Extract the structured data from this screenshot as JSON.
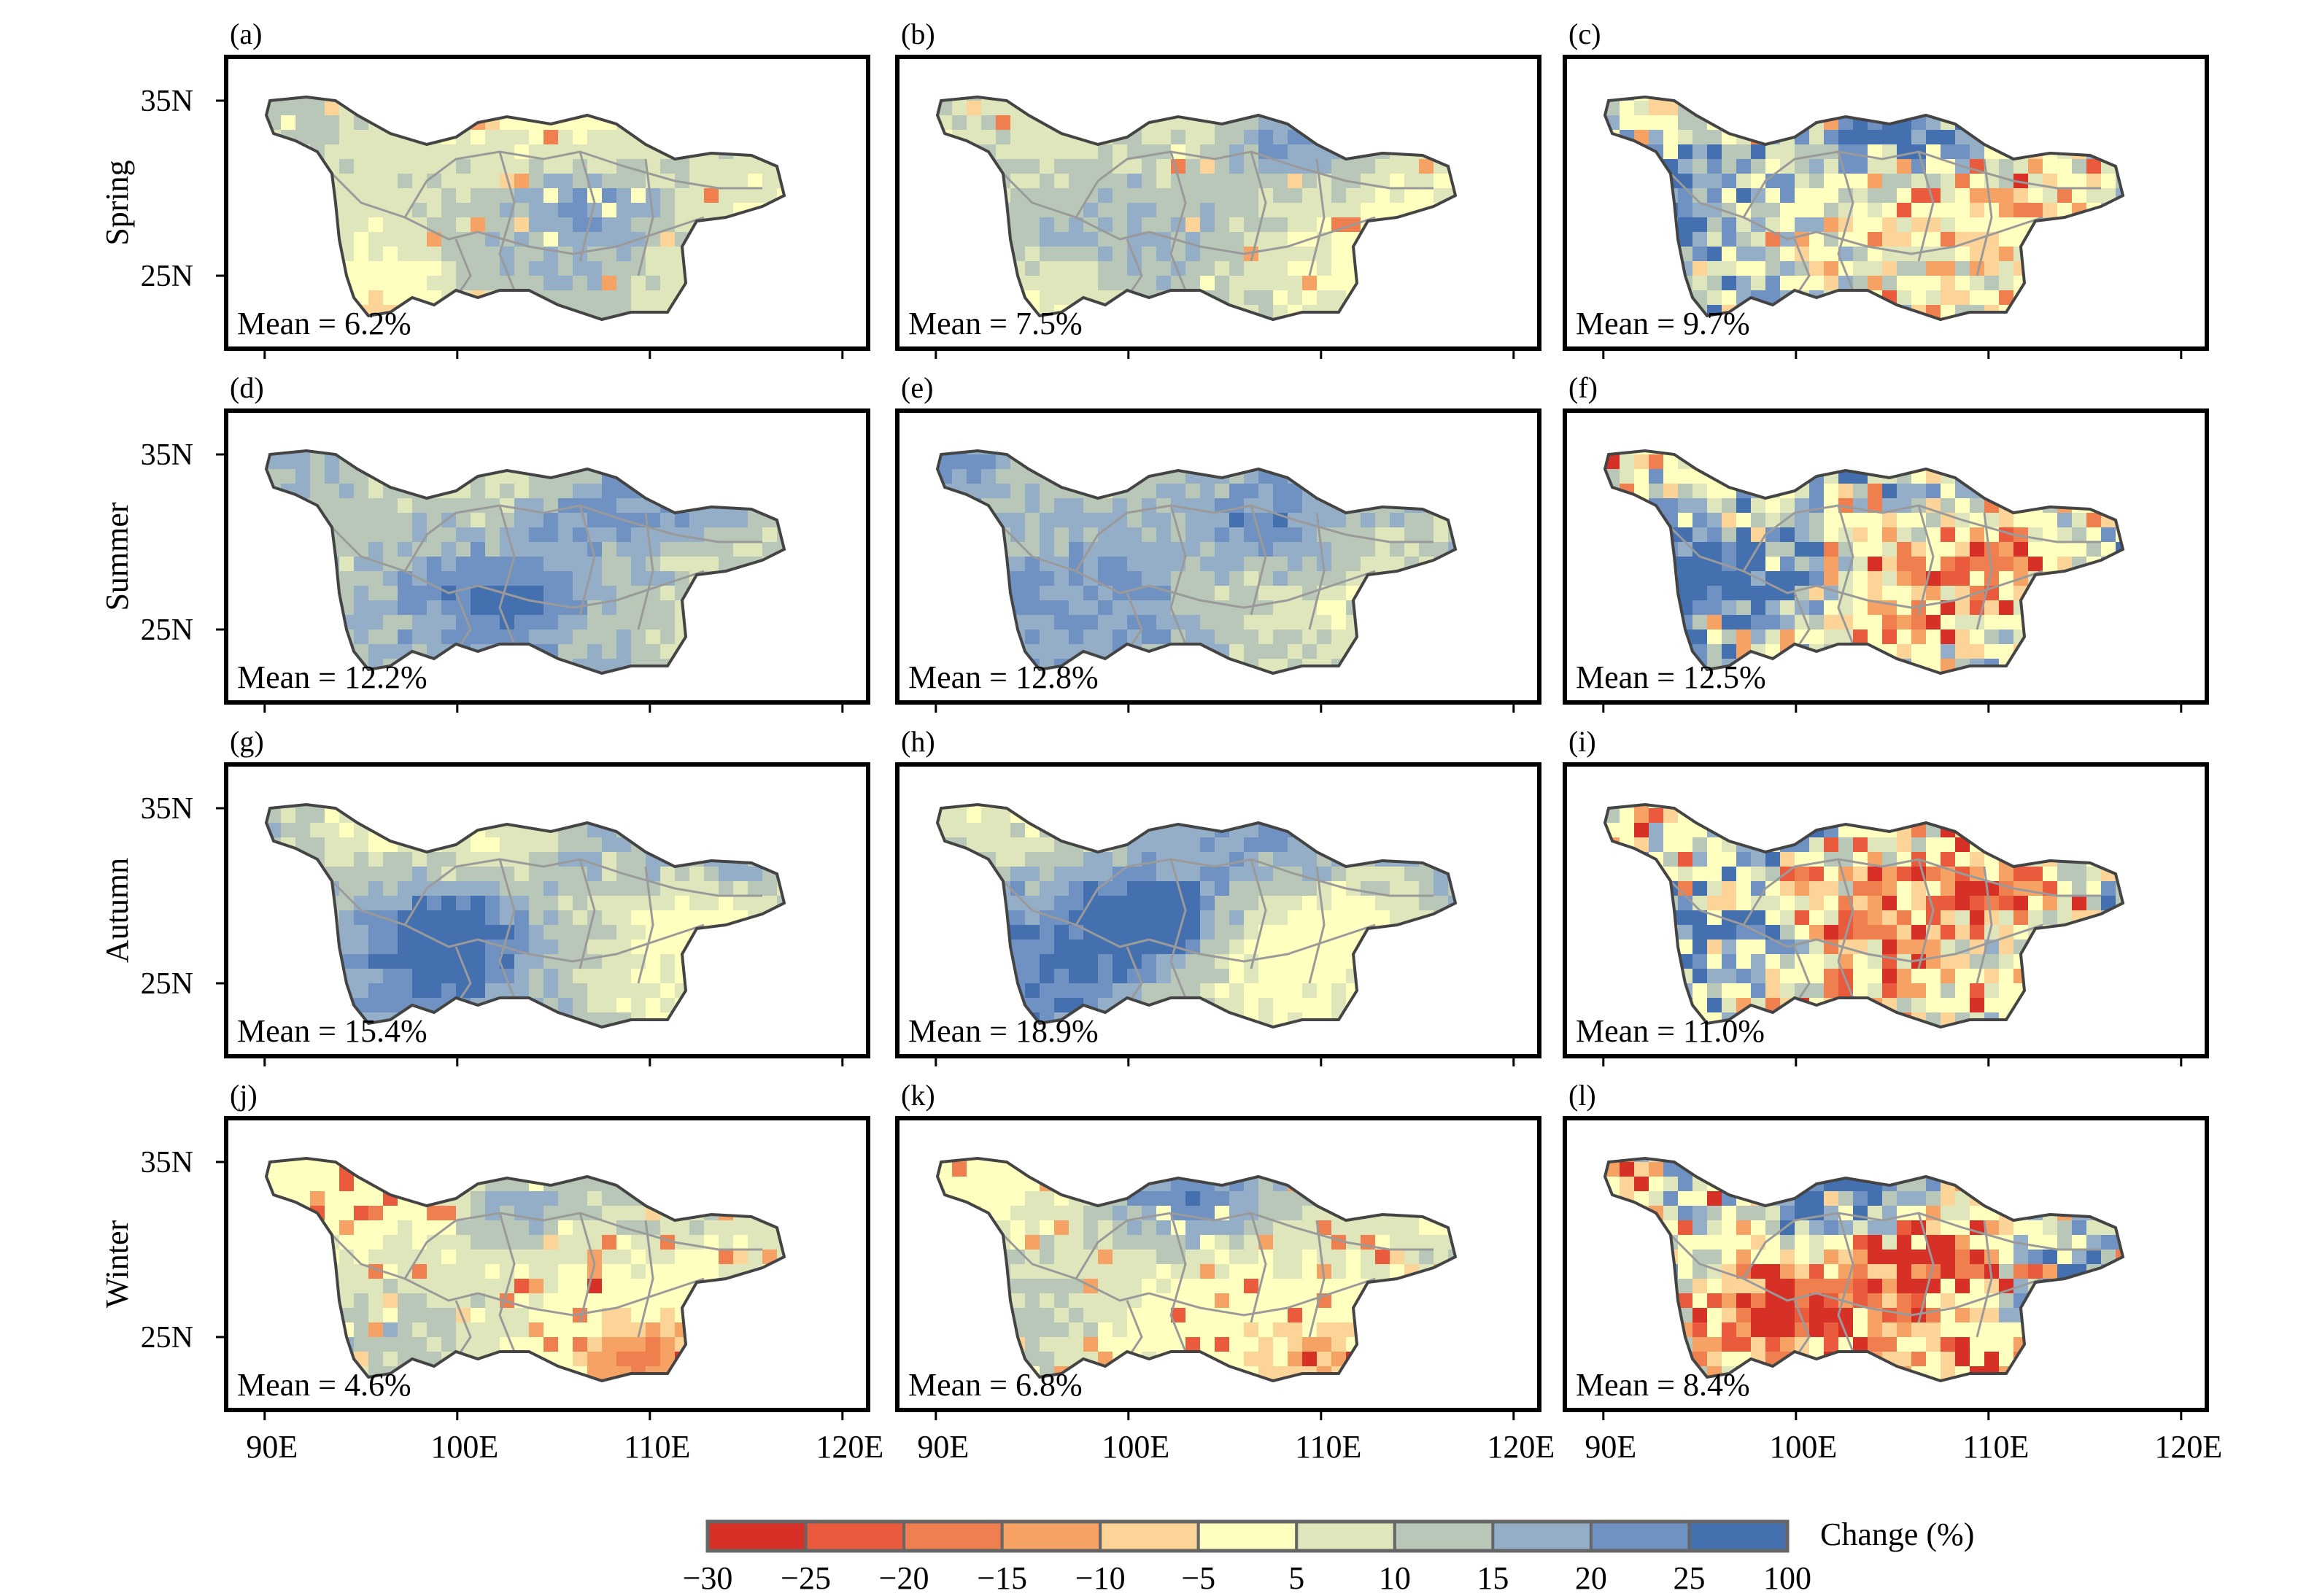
{
  "panels": [
    {
      "label": "(a)",
      "mean": "Mean = 6.2%",
      "season": "Spring",
      "pattern": {
        "base": 8,
        "amp": 6,
        "noise": 3,
        "seed": 11,
        "neg": 0.05,
        "hot": [
          [
            0.25,
            0.85,
            -12
          ],
          [
            0.6,
            0.5,
            10
          ]
        ]
      }
    },
    {
      "label": "(b)",
      "mean": "Mean = 7.5%",
      "season": "Spring",
      "pattern": {
        "base": 9,
        "amp": 7,
        "noise": 3,
        "seed": 12,
        "neg": 0.04,
        "hot": [
          [
            0.25,
            0.85,
            -8
          ],
          [
            0.65,
            0.25,
            12
          ]
        ]
      }
    },
    {
      "label": "(c)",
      "mean": "Mean = 9.7%",
      "season": "Spring",
      "pattern": {
        "base": 10,
        "amp": 14,
        "noise": 12,
        "seed": 13,
        "neg": 0.15,
        "hot": [
          [
            0.55,
            0.2,
            20
          ],
          [
            0.3,
            0.6,
            -10
          ]
        ]
      }
    },
    {
      "label": "(d)",
      "mean": "Mean = 12.2%",
      "season": "Summer",
      "pattern": {
        "base": 13,
        "amp": 7,
        "noise": 4,
        "seed": 21,
        "neg": 0.0,
        "hot": [
          [
            0.63,
            0.3,
            10
          ],
          [
            0.45,
            0.6,
            8
          ]
        ]
      }
    },
    {
      "label": "(e)",
      "mean": "Mean = 12.8%",
      "season": "Summer",
      "pattern": {
        "base": 14,
        "amp": 7,
        "noise": 4,
        "seed": 22,
        "neg": 0.0,
        "hot": [
          [
            0.05,
            0.1,
            12
          ],
          [
            0.6,
            0.35,
            10
          ]
        ]
      }
    },
    {
      "label": "(f)",
      "mean": "Mean = 12.5%",
      "season": "Summer",
      "pattern": {
        "base": 12,
        "amp": 16,
        "noise": 14,
        "seed": 23,
        "neg": 0.15,
        "hot": [
          [
            0.3,
            0.55,
            20
          ],
          [
            0.7,
            0.45,
            -18
          ]
        ]
      }
    },
    {
      "label": "(g)",
      "mean": "Mean = 15.4%",
      "season": "Autumn",
      "pattern": {
        "base": 12,
        "amp": 10,
        "noise": 4,
        "seed": 31,
        "neg": 0.0,
        "hot": [
          [
            0.35,
            0.55,
            18
          ],
          [
            0.75,
            0.5,
            -8
          ]
        ]
      }
    },
    {
      "label": "(h)",
      "mean": "Mean = 18.9%",
      "season": "Autumn",
      "pattern": {
        "base": 14,
        "amp": 12,
        "noise": 4,
        "seed": 32,
        "neg": 0.0,
        "hot": [
          [
            0.4,
            0.5,
            25
          ],
          [
            0.75,
            0.5,
            -8
          ]
        ]
      }
    },
    {
      "label": "(i)",
      "mean": "Mean = 11.0%",
      "season": "Autumn",
      "pattern": {
        "base": 10,
        "amp": 18,
        "noise": 16,
        "seed": 33,
        "neg": 0.22,
        "hot": [
          [
            0.25,
            0.55,
            22
          ],
          [
            0.6,
            0.3,
            -20
          ],
          [
            0.78,
            0.4,
            -22
          ]
        ]
      }
    },
    {
      "label": "(j)",
      "mean": "Mean = 4.6%",
      "season": "Winter",
      "pattern": {
        "base": 5,
        "amp": 8,
        "noise": 3,
        "seed": 41,
        "neg": 0.1,
        "hot": [
          [
            0.68,
            0.85,
            -14
          ],
          [
            0.45,
            0.25,
            12
          ]
        ]
      }
    },
    {
      "label": "(k)",
      "mean": "Mean = 6.8%",
      "season": "Winter",
      "pattern": {
        "base": 7,
        "amp": 8,
        "noise": 3,
        "seed": 42,
        "neg": 0.1,
        "hot": [
          [
            0.72,
            0.85,
            -14
          ],
          [
            0.45,
            0.25,
            14
          ]
        ]
      }
    },
    {
      "label": "(l)",
      "mean": "Mean = 8.4%",
      "season": "Winter",
      "pattern": {
        "base": 8,
        "amp": 18,
        "noise": 14,
        "seed": 43,
        "neg": 0.2,
        "hot": [
          [
            0.6,
            0.45,
            -28
          ],
          [
            0.32,
            0.65,
            -24
          ],
          [
            0.75,
            0.85,
            -24
          ],
          [
            0.45,
            0.3,
            18
          ]
        ]
      }
    }
  ],
  "seasons": [
    "Spring",
    "Summer",
    "Autumn",
    "Winter"
  ],
  "lat_ticks": [
    "35N",
    "25N"
  ],
  "lon_ticks": [
    "90E",
    "100E",
    "110E",
    "120E"
  ],
  "colorbar": {
    "title": "Change (%)",
    "tick_labels": [
      "−30",
      "−25",
      "−20",
      "−15",
      "−10",
      "−5",
      "5",
      "10",
      "15",
      "20",
      "25",
      "100"
    ],
    "bounds": [
      -30,
      -25,
      -20,
      -15,
      -10,
      -5,
      5,
      10,
      15,
      20,
      25,
      100
    ],
    "colors": [
      "#d73027",
      "#ea5a3c",
      "#f07f50",
      "#f6a265",
      "#fdd497",
      "#ffffc0",
      "#dfe6bc",
      "#b8c7b8",
      "#94aec8",
      "#6f92c2",
      "#4470b0"
    ]
  },
  "map_style": {
    "boundary_color": "#444444",
    "river_color": "#9a9a9a",
    "frame_color": "#000000"
  }
}
